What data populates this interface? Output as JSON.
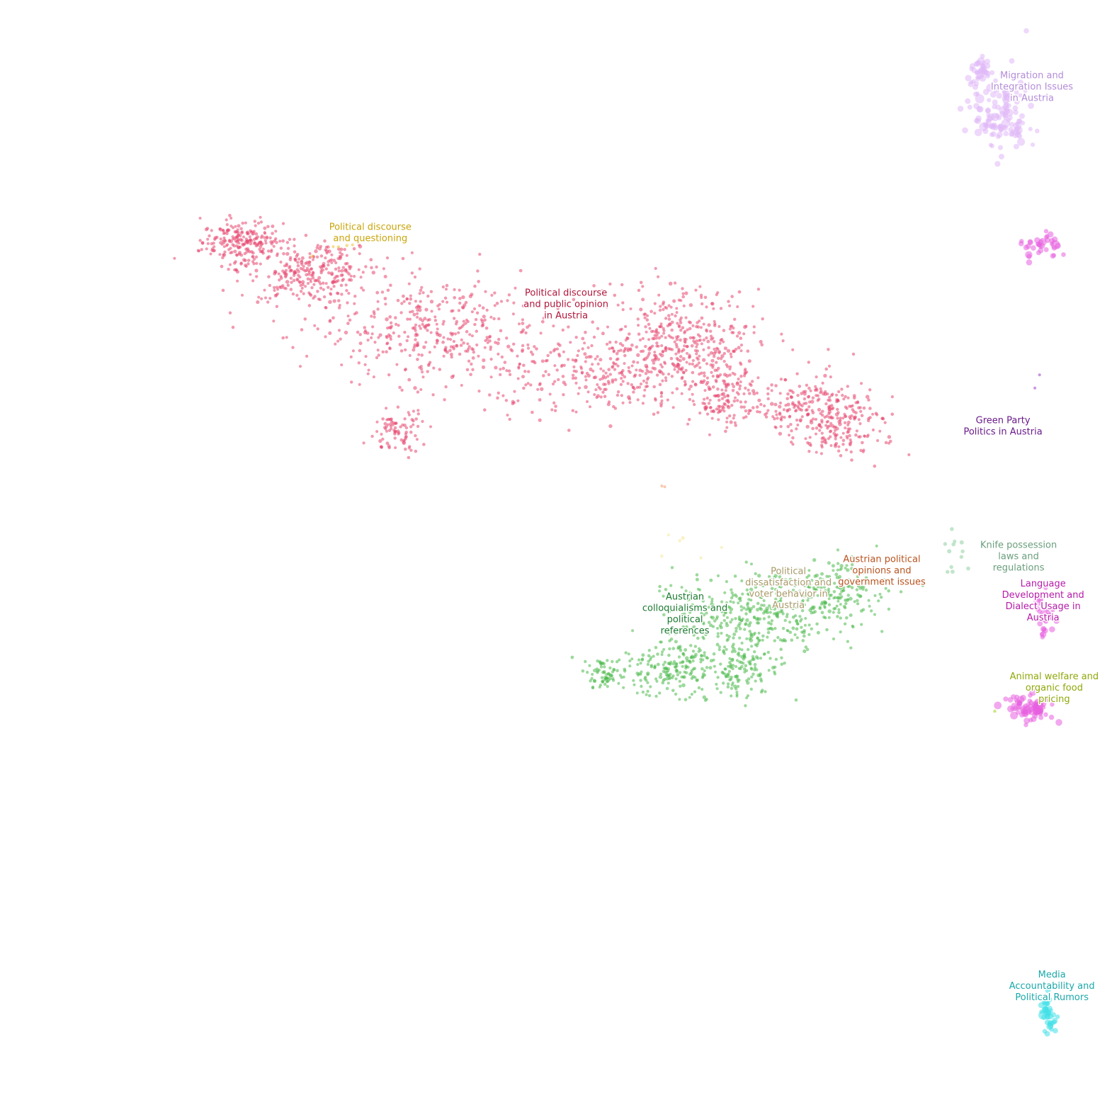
{
  "chart_data": {
    "type": "scatter",
    "title": "",
    "xlabel": "",
    "ylabel": "",
    "xlim": [
      0,
      100
    ],
    "ylim": [
      0,
      100
    ],
    "grid": false,
    "axes": false,
    "legend": "none",
    "clusters": [
      {
        "label": "Political discourse and public opinion in Austria",
        "color": "#e8476f",
        "label_color": "#b0153a",
        "label_at": [
          50.9,
          72.2
        ],
        "count": 2100,
        "size": "small",
        "regions": [
          [
            21.8,
            78.1,
            3.0,
            1.6,
            0.1
          ],
          [
            27.5,
            75.5,
            5.0,
            2.5,
            0.14
          ],
          [
            39.0,
            70.0,
            8.0,
            4.0,
            0.18
          ],
          [
            61.0,
            69.0,
            6.0,
            4.0,
            0.2
          ],
          [
            65.0,
            64.0,
            2.5,
            2.0,
            0.06
          ],
          [
            73.5,
            63.0,
            4.5,
            2.5,
            0.12
          ],
          [
            53.0,
            66.0,
            9.0,
            2.8,
            0.12
          ],
          [
            36.0,
            61.0,
            2.0,
            1.6,
            0.04
          ],
          [
            76.0,
            60.5,
            3.0,
            1.6,
            0.04
          ]
        ]
      },
      {
        "label": "Political discourse and questioning",
        "color": "#f0c030",
        "label_color": "#c9a50a",
        "label_at": [
          33.3,
          78.7
        ],
        "count": 6,
        "size": "small",
        "regions": [
          [
            31.0,
            78.0,
            2.0,
            1.0,
            1.0
          ]
        ]
      },
      {
        "label": "Migration and Integration Issues in Austria",
        "color": "#e0b8f8",
        "label_color": "#b48cd8",
        "label_at": [
          92.8,
          91.9
        ],
        "count": 160,
        "size": "large",
        "regions": [
          [
            90.0,
            89.5,
            2.0,
            3.0,
            0.75
          ],
          [
            88.0,
            93.5,
            1.0,
            1.2,
            0.25
          ]
        ]
      },
      {
        "label": "Green Party Politics in Austria",
        "color": "#a040c8",
        "label_color": "#6a1b8a",
        "label_at": [
          90.2,
          61.2
        ],
        "count": 2,
        "size": "small",
        "regions": [
          [
            93.5,
            65.0,
            0.4,
            1.2,
            1.0
          ]
        ]
      },
      {
        "label": "Austrian colloquialisms and political references",
        "color": "#4cba4c",
        "label_color": "#1a7a2e",
        "label_at": [
          61.6,
          44.2
        ],
        "count": 900,
        "size": "small",
        "regions": [
          [
            68.0,
            44.5,
            6.0,
            3.0,
            0.4
          ],
          [
            60.0,
            39.5,
            3.5,
            2.0,
            0.2
          ],
          [
            66.5,
            39.5,
            3.0,
            2.2,
            0.15
          ],
          [
            54.5,
            39.0,
            1.5,
            1.2,
            0.08
          ],
          [
            75.5,
            46.5,
            3.5,
            2.5,
            0.17
          ]
        ]
      },
      {
        "label": "Political dissatisfaction and voter behavior in Austria",
        "color": "#f5e89a",
        "label_color": "#a89a68",
        "label_at": [
          70.9,
          46.5
        ],
        "count": 6,
        "size": "small",
        "regions": [
          [
            62.0,
            50.5,
            3.0,
            1.0,
            1.0
          ]
        ]
      },
      {
        "label": "Austrian political opinions and government issues",
        "color": "#f0a070",
        "label_color": "#b8531f",
        "label_at": [
          79.3,
          48.1
        ],
        "count": 2,
        "size": "small",
        "regions": [
          [
            59.5,
            56.0,
            0.3,
            0.3,
            1.0
          ]
        ]
      },
      {
        "label": "Knife possession laws and regulations",
        "color": "#8fd0a0",
        "label_color": "#6a9e7c",
        "label_at": [
          91.6,
          49.4
        ],
        "count": 12,
        "size": "medium",
        "regions": [
          [
            85.5,
            50.0,
            2.0,
            3.0,
            1.0
          ]
        ]
      },
      {
        "label": "Language Development and Dialect Usage in Austria",
        "color": "#e860e0",
        "label_color": "#b51aa8",
        "label_at": [
          93.8,
          45.4
        ],
        "count": 140,
        "size": "large",
        "regions": [
          [
            92.5,
            36.0,
            2.0,
            0.9,
            0.55
          ],
          [
            93.5,
            77.5,
            1.5,
            1.1,
            0.25
          ],
          [
            94.0,
            44.5,
            0.8,
            1.6,
            0.2
          ]
        ]
      },
      {
        "label": "Animal welfare and organic food pricing",
        "color": "#a8d020",
        "label_color": "#8fa80a",
        "label_at": [
          94.8,
          37.5
        ],
        "count": 1,
        "size": "small",
        "regions": [
          [
            89.5,
            35.8,
            0.2,
            0.2,
            1.0
          ]
        ]
      },
      {
        "label": "Media Accountability and Political Rumors",
        "color": "#40e0e8",
        "label_color": "#1aa8aa",
        "label_at": [
          94.6,
          10.5
        ],
        "count": 40,
        "size": "large",
        "regions": [
          [
            94.3,
            8.3,
            0.6,
            1.6,
            1.0
          ]
        ]
      }
    ]
  }
}
